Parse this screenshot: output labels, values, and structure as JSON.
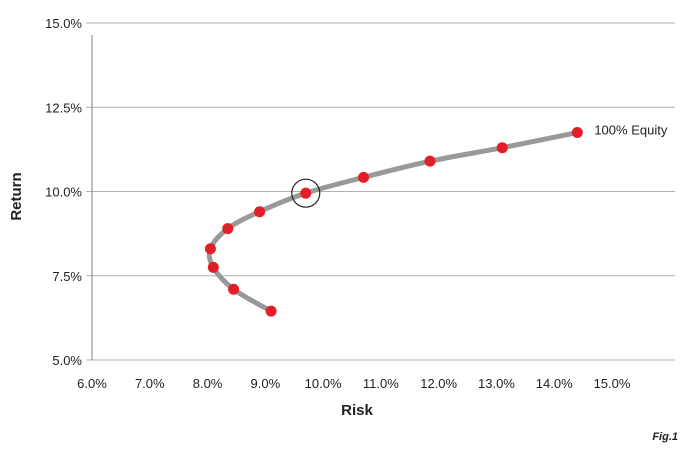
{
  "chart_data": {
    "type": "line",
    "title": "",
    "xlabel": "Risk",
    "ylabel": "Return",
    "xlim": [
      6.0,
      15.0
    ],
    "ylim": [
      5.0,
      15.0
    ],
    "x_ticks": [
      "6.0%",
      "7.0%",
      "8.0%",
      "9.0%",
      "10.0%",
      "11.0%",
      "12.0%",
      "13.0%",
      "14.0%",
      "15.0%"
    ],
    "y_ticks": [
      "5.0%",
      "7.5%",
      "10.0%",
      "12.5%",
      "15.0%"
    ],
    "x_tick_values": [
      6,
      7,
      8,
      9,
      10,
      11,
      12,
      13,
      14,
      15
    ],
    "y_tick_values": [
      5.0,
      7.5,
      10.0,
      12.5,
      15.0
    ],
    "grid": "horizontal",
    "series": [
      {
        "points": [
          {
            "x": 9.1,
            "y": 6.45
          },
          {
            "x": 8.45,
            "y": 7.1
          },
          {
            "x": 8.1,
            "y": 7.75
          },
          {
            "x": 8.05,
            "y": 8.3
          },
          {
            "x": 8.35,
            "y": 8.9
          },
          {
            "x": 8.9,
            "y": 9.4
          },
          {
            "x": 9.7,
            "y": 9.95
          },
          {
            "x": 10.7,
            "y": 10.42
          },
          {
            "x": 11.85,
            "y": 10.9
          },
          {
            "x": 13.1,
            "y": 11.3
          },
          {
            "x": 14.4,
            "y": 11.75
          }
        ],
        "line_color": "#999999",
        "marker_color": "#e21f26"
      }
    ],
    "highlighted_point_index": 6,
    "annotations": [
      {
        "text": "100% Equity",
        "point_index": 10
      }
    ],
    "figure_label": "Fig.1"
  }
}
